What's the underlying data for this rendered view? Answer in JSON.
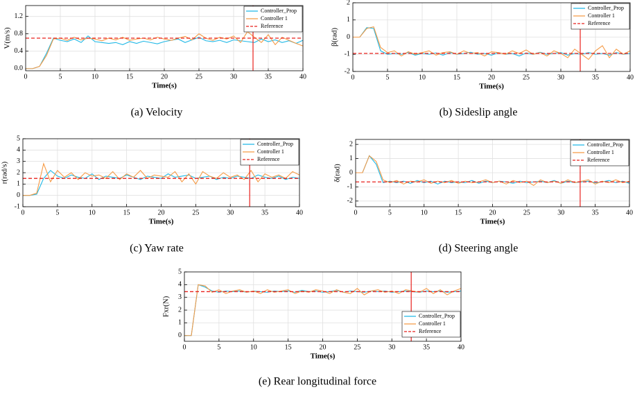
{
  "chart_data": [
    {
      "type": "line",
      "caption": "(a) Velocity",
      "xlabel": "Time(s)",
      "ylabel": "V(m/s)",
      "xlim": [
        0,
        40
      ],
      "ylim": [
        -0.05,
        1.45
      ],
      "xticks": [
        0,
        5,
        10,
        15,
        20,
        25,
        30,
        35,
        40
      ],
      "yticks": [
        {
          "value": 0,
          "label": "0.0"
        },
        0.4,
        0.8,
        1.2
      ],
      "grid": true,
      "legend": "upper right",
      "vline": {
        "x": 32.8,
        "color": "#e8201c"
      },
      "x": [
        0,
        1,
        2,
        3,
        4,
        5,
        6,
        7,
        8,
        9,
        10,
        11,
        12,
        13,
        14,
        15,
        16,
        17,
        18,
        19,
        20,
        21,
        22,
        23,
        24,
        25,
        26,
        27,
        28,
        29,
        30,
        31,
        32,
        33,
        34,
        35,
        36,
        37,
        38,
        39,
        40
      ],
      "series": [
        {
          "name": "Controller_Prop",
          "color": "#1fb8e6",
          "values": [
            0,
            0,
            0.05,
            0.35,
            0.7,
            0.65,
            0.62,
            0.68,
            0.6,
            0.75,
            0.62,
            0.6,
            0.58,
            0.6,
            0.55,
            0.62,
            0.58,
            0.63,
            0.6,
            0.57,
            0.62,
            0.65,
            0.68,
            0.6,
            0.66,
            0.72,
            0.64,
            0.62,
            0.65,
            0.6,
            0.66,
            0.64,
            0.62,
            0.6,
            0.68,
            0.62,
            0.66,
            0.6,
            0.64,
            0.58,
            0.65
          ]
        },
        {
          "name": "Controller 1",
          "color": "#f59a45",
          "values": [
            0,
            0,
            0.05,
            0.3,
            0.68,
            0.7,
            0.65,
            0.72,
            0.66,
            0.7,
            0.68,
            0.64,
            0.7,
            0.66,
            0.72,
            0.65,
            0.68,
            0.7,
            0.66,
            0.72,
            0.68,
            0.65,
            0.7,
            0.74,
            0.66,
            0.8,
            0.7,
            0.65,
            0.72,
            0.68,
            0.75,
            0.6,
            0.85,
            0.72,
            0.6,
            0.78,
            0.55,
            0.72,
            0.65,
            0.58,
            0.52
          ]
        },
        {
          "name": "Reference",
          "color": "#e8201c",
          "dashed": true,
          "x": [
            0,
            40
          ],
          "values": [
            0.7,
            0.7
          ]
        }
      ]
    },
    {
      "type": "line",
      "caption": "(b) Sideslip angle",
      "xlabel": "Time(s)",
      "ylabel": "β(rad)",
      "xlim": [
        0,
        40
      ],
      "ylim": [
        -2,
        2
      ],
      "xticks": [
        0,
        5,
        10,
        15,
        20,
        25,
        30,
        35,
        40
      ],
      "yticks": [
        -2,
        -1,
        0,
        1,
        2
      ],
      "grid": true,
      "legend": "upper right",
      "vline": {
        "x": 32.8,
        "color": "#e8201c"
      },
      "x": [
        0,
        1,
        2,
        3,
        4,
        5,
        6,
        7,
        8,
        9,
        10,
        11,
        12,
        13,
        14,
        15,
        16,
        17,
        18,
        19,
        20,
        21,
        22,
        23,
        24,
        25,
        26,
        27,
        28,
        29,
        30,
        31,
        32,
        33,
        34,
        35,
        36,
        37,
        38,
        39,
        40
      ],
      "series": [
        {
          "name": "Controller_Prop",
          "color": "#1fb8e6",
          "values": [
            0,
            0,
            0.55,
            0.5,
            -0.8,
            -1.0,
            -0.95,
            -1.0,
            -0.9,
            -1.05,
            -0.95,
            -1.0,
            -0.92,
            -1.05,
            -0.9,
            -1.0,
            -0.95,
            -0.88,
            -1.0,
            -0.95,
            -1.05,
            -0.9,
            -1.0,
            -0.95,
            -1.1,
            -0.92,
            -1.0,
            -0.88,
            -1.0,
            -0.95,
            -0.9,
            -1.05,
            -0.95,
            -1.0,
            -0.9,
            -1.0,
            -0.95,
            -1.05,
            -0.9,
            -1.0,
            -0.95
          ]
        },
        {
          "name": "Controller 1",
          "color": "#f59a45",
          "values": [
            0,
            0,
            0.5,
            0.6,
            -0.6,
            -0.9,
            -0.8,
            -1.1,
            -0.85,
            -1.0,
            -0.9,
            -0.8,
            -1.05,
            -0.9,
            -0.85,
            -1.0,
            -0.8,
            -0.95,
            -0.9,
            -1.1,
            -0.85,
            -0.9,
            -1.0,
            -0.8,
            -0.95,
            -0.75,
            -1.0,
            -0.9,
            -1.1,
            -0.8,
            -0.95,
            -1.2,
            -0.7,
            -1.0,
            -1.3,
            -0.8,
            -0.5,
            -1.2,
            -0.7,
            -1.0,
            -0.8
          ]
        },
        {
          "name": "Reference",
          "color": "#e8201c",
          "dashed": true,
          "x": [
            0,
            40
          ],
          "values": [
            -0.95,
            -0.95
          ]
        }
      ]
    },
    {
      "type": "line",
      "caption": "(c) Yaw rate",
      "xlabel": "Time(s)",
      "ylabel": "r(rad/s)",
      "xlim": [
        0,
        40
      ],
      "ylim": [
        -1,
        5
      ],
      "xticks": [
        0,
        5,
        10,
        15,
        20,
        25,
        30,
        35,
        40
      ],
      "yticks": [
        -1,
        0,
        1,
        2,
        3,
        4,
        5
      ],
      "grid": true,
      "legend": "upper right",
      "vline": {
        "x": 32.8,
        "color": "#e8201c"
      },
      "x": [
        0,
        1,
        2,
        3,
        4,
        5,
        6,
        7,
        8,
        9,
        10,
        11,
        12,
        13,
        14,
        15,
        16,
        17,
        18,
        19,
        20,
        21,
        22,
        23,
        24,
        25,
        26,
        27,
        28,
        29,
        30,
        31,
        32,
        33,
        34,
        35,
        36,
        37,
        38,
        39,
        40
      ],
      "series": [
        {
          "name": "Controller_Prop",
          "color": "#1fb8e6",
          "values": [
            0,
            0,
            0.1,
            1.5,
            2.2,
            1.7,
            1.5,
            1.8,
            1.6,
            1.5,
            1.9,
            1.4,
            1.7,
            1.6,
            1.5,
            1.8,
            1.6,
            1.4,
            1.7,
            1.6,
            1.5,
            1.9,
            1.6,
            1.7,
            1.8,
            1.5,
            1.6,
            1.7,
            1.4,
            1.6,
            1.5,
            1.7,
            1.6,
            1.5,
            1.8,
            1.6,
            1.5,
            1.7,
            1.4,
            1.6,
            1.5
          ]
        },
        {
          "name": "Controller 1",
          "color": "#f59a45",
          "values": [
            0,
            0,
            0.2,
            2.8,
            1.2,
            2.2,
            1.6,
            2.0,
            1.4,
            2.0,
            1.7,
            1.8,
            1.5,
            2.1,
            1.4,
            1.9,
            1.6,
            2.2,
            1.5,
            1.8,
            1.7,
            1.6,
            2.1,
            1.2,
            1.9,
            1.0,
            2.1,
            1.7,
            1.5,
            2.0,
            1.6,
            1.8,
            1.4,
            2.2,
            1.2,
            1.9,
            1.6,
            1.8,
            1.5,
            2.1,
            1.8
          ]
        },
        {
          "name": "Reference",
          "color": "#e8201c",
          "dashed": true,
          "x": [
            0,
            40
          ],
          "values": [
            1.5,
            1.5
          ]
        }
      ]
    },
    {
      "type": "line",
      "caption": "(d) Steering angle",
      "xlabel": "Time(s)",
      "ylabel": "δ(rad)",
      "xlim": [
        0,
        40
      ],
      "ylim": [
        -2.4,
        2.35
      ],
      "xticks": [
        0,
        5,
        10,
        15,
        20,
        25,
        30,
        35,
        40
      ],
      "yticks": [
        -2,
        -1,
        0,
        1,
        2
      ],
      "grid": true,
      "legend": "upper right",
      "vline": {
        "x": 32.8,
        "color": "#e8201c"
      },
      "x": [
        0,
        1,
        2,
        3,
        4,
        5,
        6,
        7,
        8,
        9,
        10,
        11,
        12,
        13,
        14,
        15,
        16,
        17,
        18,
        19,
        20,
        21,
        22,
        23,
        24,
        25,
        26,
        27,
        28,
        29,
        30,
        31,
        32,
        33,
        34,
        35,
        36,
        37,
        38,
        39,
        40
      ],
      "series": [
        {
          "name": "Controller_Prop",
          "color": "#1fb8e6",
          "values": [
            0,
            0,
            1.2,
            0.6,
            -0.7,
            -0.6,
            -0.7,
            -0.6,
            -0.75,
            -0.55,
            -0.7,
            -0.6,
            -0.8,
            -0.6,
            -0.7,
            -0.65,
            -0.7,
            -0.55,
            -0.75,
            -0.6,
            -0.7,
            -0.6,
            -0.65,
            -0.75,
            -0.6,
            -0.7,
            -0.65,
            -0.6,
            -0.7,
            -0.55,
            -0.75,
            -0.6,
            -0.7,
            -0.65,
            -0.6,
            -0.7,
            -0.65,
            -0.55,
            -0.7,
            -0.6,
            -0.75
          ]
        },
        {
          "name": "Controller 1",
          "color": "#f59a45",
          "values": [
            0,
            0,
            1.2,
            0.8,
            -0.5,
            -0.7,
            -0.55,
            -0.8,
            -0.6,
            -0.65,
            -0.5,
            -0.75,
            -0.6,
            -0.7,
            -0.55,
            -0.75,
            -0.6,
            -0.7,
            -0.65,
            -0.5,
            -0.7,
            -0.6,
            -0.8,
            -0.55,
            -0.7,
            -0.6,
            -0.9,
            -0.5,
            -0.7,
            -0.6,
            -0.75,
            -0.5,
            -0.7,
            -0.6,
            -0.5,
            -0.8,
            -0.6,
            -0.7,
            -0.5,
            -0.7,
            -0.6
          ]
        },
        {
          "name": "Reference",
          "color": "#e8201c",
          "dashed": true,
          "x": [
            0,
            40
          ],
          "values": [
            -0.65,
            -0.65
          ]
        }
      ]
    },
    {
      "type": "line",
      "caption": "(e) Rear longitudinal force",
      "xlabel": "Time(s)",
      "ylabel": "Fxr(N)",
      "xlim": [
        0,
        40
      ],
      "ylim": [
        -0.45,
        5
      ],
      "xticks": [
        0,
        5,
        10,
        15,
        20,
        25,
        30,
        35,
        40
      ],
      "yticks": [
        0,
        1,
        2,
        3,
        4,
        5
      ],
      "grid": true,
      "legend": "lower right",
      "vline": {
        "x": 32.8,
        "color": "#e8201c"
      },
      "x": [
        0,
        1,
        2,
        3,
        4,
        5,
        6,
        7,
        8,
        9,
        10,
        11,
        12,
        13,
        14,
        15,
        16,
        17,
        18,
        19,
        20,
        21,
        22,
        23,
        24,
        25,
        26,
        27,
        28,
        29,
        30,
        31,
        32,
        33,
        34,
        35,
        36,
        37,
        38,
        39,
        40
      ],
      "series": [
        {
          "name": "Controller_Prop",
          "color": "#1fb8e6",
          "values": [
            0,
            0,
            4.0,
            3.8,
            3.5,
            3.4,
            3.5,
            3.45,
            3.5,
            3.4,
            3.5,
            3.45,
            3.4,
            3.5,
            3.45,
            3.5,
            3.4,
            3.55,
            3.45,
            3.5,
            3.4,
            3.45,
            3.55,
            3.4,
            3.5,
            3.45,
            3.4,
            3.5,
            3.45,
            3.5,
            3.4,
            3.45,
            3.5,
            3.45,
            3.4,
            3.5,
            3.45,
            3.5,
            3.4,
            3.45,
            3.5
          ]
        },
        {
          "name": "Controller 1",
          "color": "#f59a45",
          "values": [
            0,
            0,
            4.0,
            3.9,
            3.4,
            3.6,
            3.3,
            3.5,
            3.6,
            3.4,
            3.5,
            3.3,
            3.6,
            3.4,
            3.5,
            3.6,
            3.3,
            3.5,
            3.4,
            3.6,
            3.5,
            3.3,
            3.6,
            3.4,
            3.3,
            3.7,
            3.2,
            3.5,
            3.6,
            3.4,
            3.5,
            3.3,
            3.6,
            3.5,
            3.4,
            3.7,
            3.3,
            3.6,
            3.2,
            3.5,
            3.7
          ]
        },
        {
          "name": "Reference",
          "color": "#e8201c",
          "dashed": true,
          "x": [
            0,
            40
          ],
          "values": [
            3.45,
            3.45
          ]
        }
      ]
    }
  ]
}
